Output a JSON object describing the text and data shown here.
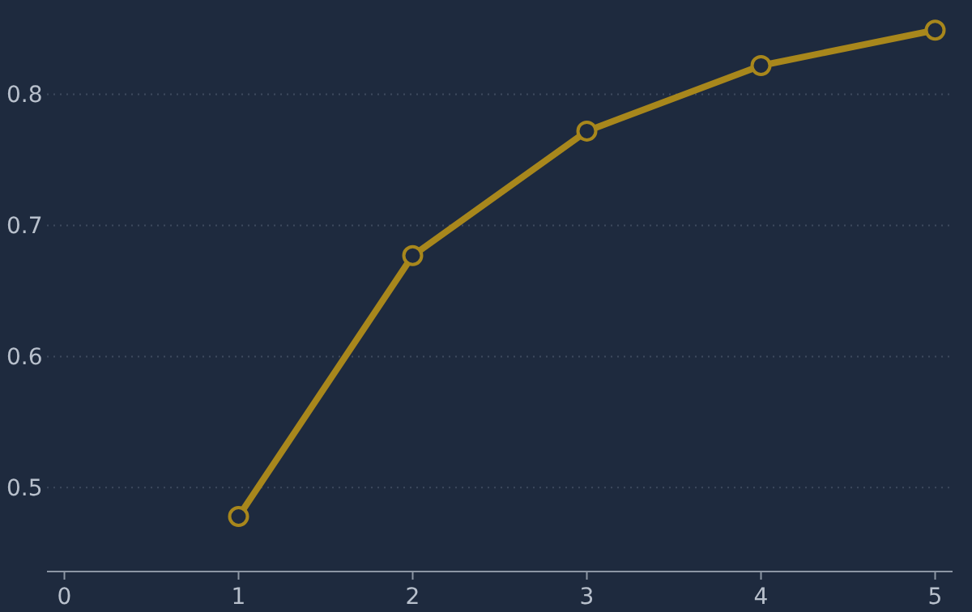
{
  "chart_data": {
    "type": "line",
    "x": [
      1,
      2,
      3,
      4,
      5
    ],
    "series": [
      {
        "color": "#a8871c",
        "values": [
          0.478,
          0.677,
          0.772,
          0.822,
          0.849
        ]
      }
    ],
    "xlim": [
      -0.1,
      5.1
    ],
    "ylim": [
      0.436,
      0.872
    ],
    "xticks": [
      0,
      1,
      2,
      3,
      4,
      5
    ],
    "yticks": [
      0.5,
      0.6,
      0.7,
      0.8
    ],
    "grid": "y",
    "marker": "circle",
    "line_style": "solid"
  }
}
